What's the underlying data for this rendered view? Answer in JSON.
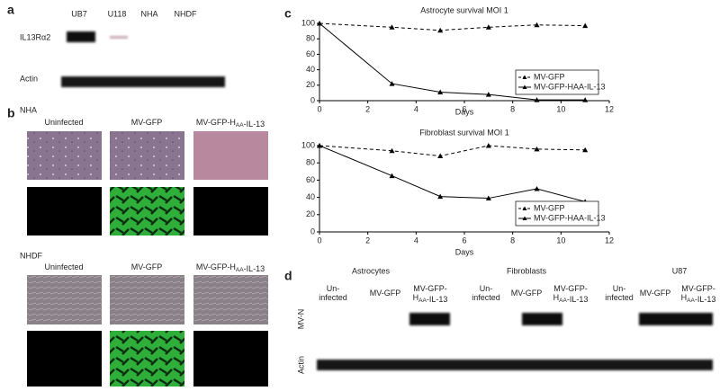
{
  "panel_a": {
    "label": "a",
    "lanes": [
      "UB7",
      "U118",
      "NHA",
      "NHDF"
    ],
    "rows": [
      "IL13Rα2",
      "Actin"
    ]
  },
  "panel_b": {
    "label": "b",
    "groups": [
      {
        "name": "NHA",
        "columns": [
          [
            [
              "Uninfected"
            ]
          ],
          [
            [
              "MV-GFP"
            ]
          ],
          [
            [
              "MV-GFP-H",
              {
                "sub": "AA"
              },
              "-IL-13"
            ]
          ]
        ]
      },
      {
        "name": "NHDF",
        "columns": [
          [
            [
              "Uninfected"
            ]
          ],
          [
            [
              "MV-GFP"
            ]
          ],
          [
            [
              "MV-GFP-H",
              {
                "sub": "AA"
              },
              "-IL-13"
            ]
          ]
        ]
      }
    ]
  },
  "panel_c": {
    "label": "c"
  },
  "chart_data": [
    {
      "type": "line",
      "title": "Astrocyte survival MOI 1",
      "x_label": "Days",
      "x": [
        0,
        3,
        5,
        7,
        9,
        11
      ],
      "xlim": [
        0,
        12
      ],
      "xticks": [
        0,
        2,
        4,
        6,
        8,
        10,
        12
      ],
      "ylim": [
        0,
        100
      ],
      "yticks": [
        0,
        20,
        40,
        60,
        80,
        100
      ],
      "legend": "lower right",
      "series": [
        {
          "name": "MV-GFP",
          "color": "#000000",
          "linestyle": "dashed",
          "values": [
            100,
            95,
            91,
            95,
            98,
            97
          ]
        },
        {
          "name": "MV-GFP-HAA-IL-13",
          "color": "#000000",
          "linestyle": "solid",
          "values": [
            100,
            22,
            11,
            8,
            1,
            1
          ]
        }
      ]
    },
    {
      "type": "line",
      "title": "Fibroblast survival MOI 1",
      "x_label": "Days",
      "x": [
        0,
        3,
        5,
        7,
        9,
        11
      ],
      "xlim": [
        0,
        12
      ],
      "xticks": [
        0,
        2,
        4,
        6,
        8,
        10,
        12
      ],
      "ylim": [
        0,
        100
      ],
      "yticks": [
        0,
        20,
        40,
        60,
        80,
        100
      ],
      "legend": "lower right",
      "series": [
        {
          "name": "MV-GFP",
          "color": "#000000",
          "linestyle": "dashed",
          "values": [
            100,
            94,
            88,
            100,
            96,
            95
          ]
        },
        {
          "name": "MV-GFP-HAA-IL-13",
          "color": "#000000",
          "linestyle": "solid",
          "values": [
            100,
            65,
            41,
            39,
            50,
            35
          ]
        }
      ]
    }
  ],
  "panel_d": {
    "label": "d",
    "groups": [
      "Astrocytes",
      "Fibroblasts",
      "U87"
    ],
    "lanes": [
      [
        [
          "Un-"
        ],
        [
          "infected"
        ]
      ],
      [
        [
          "MV-GFP"
        ]
      ],
      [
        [
          "MV-GFP-"
        ],
        [
          "H",
          {
            "sub": "AA"
          },
          "-IL-13"
        ]
      ],
      [
        [
          "Un-"
        ],
        [
          "infected"
        ]
      ],
      [
        [
          "MV-GFP"
        ]
      ],
      [
        [
          "MV-GFP-"
        ],
        [
          "H",
          {
            "sub": "AA"
          },
          "-IL-13"
        ]
      ],
      [
        [
          "Un-"
        ],
        [
          "infected"
        ]
      ],
      [
        [
          "MV-GFP"
        ]
      ],
      [
        [
          "MV-GFP-"
        ],
        [
          "H",
          {
            "sub": "AA"
          },
          "-IL-13"
        ]
      ]
    ],
    "rows": [
      "MV-N",
      "Actin"
    ]
  }
}
